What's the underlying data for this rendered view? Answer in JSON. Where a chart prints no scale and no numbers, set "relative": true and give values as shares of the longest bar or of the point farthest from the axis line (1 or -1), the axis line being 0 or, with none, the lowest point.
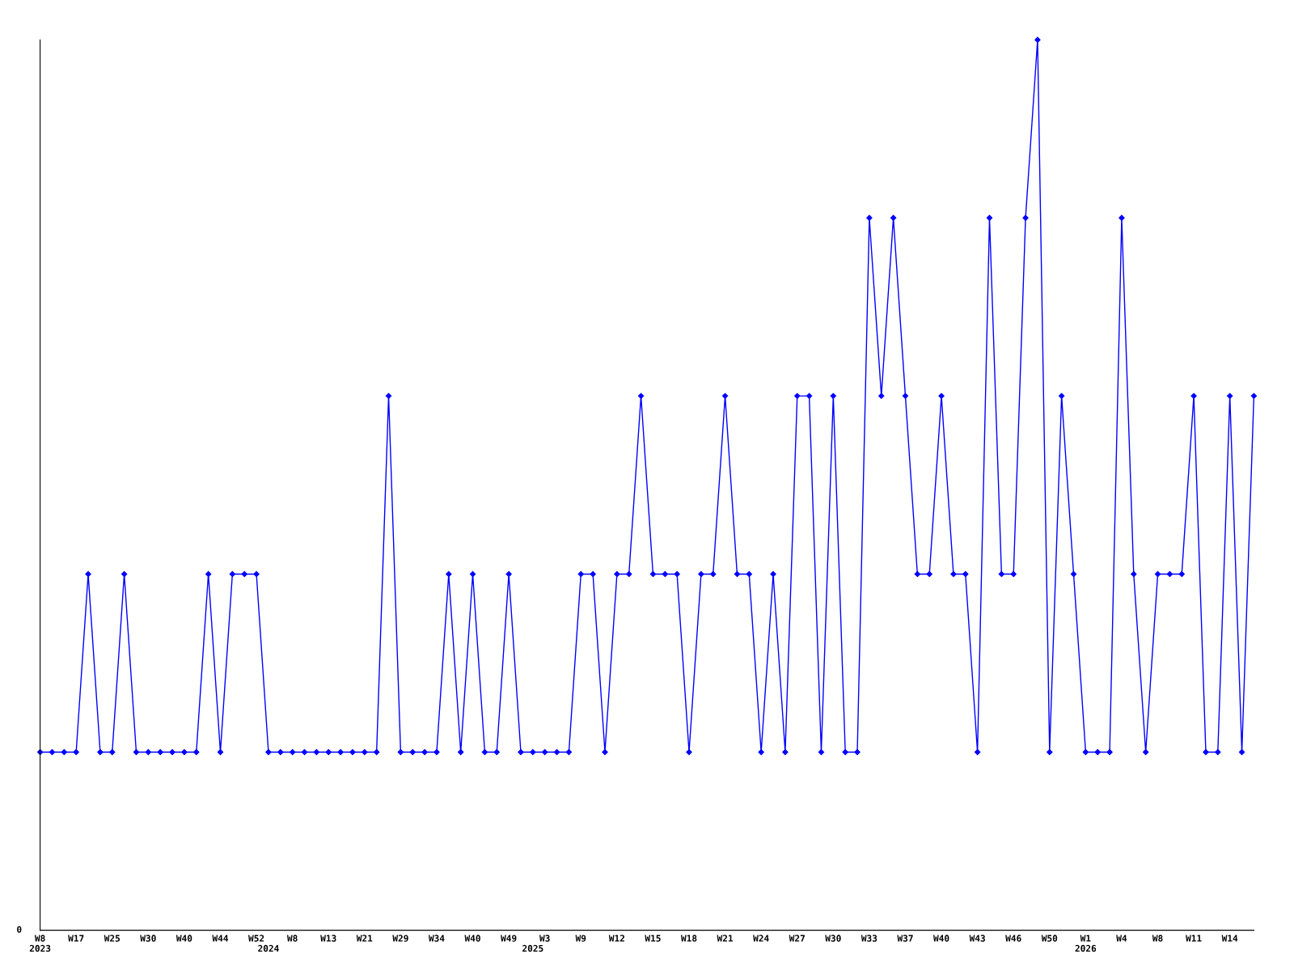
{
  "chart_data": {
    "type": "line",
    "relative": true,
    "color": "#0000ff",
    "marker": "diamond",
    "line_style": "solid",
    "grid": false,
    "legend": false,
    "annotations": [
      "0"
    ],
    "categories": [
      "W8\n2023",
      null,
      null,
      "W17",
      null,
      null,
      "W25",
      null,
      null,
      "W30",
      null,
      null,
      "W40",
      null,
      null,
      "W44",
      null,
      null,
      "W52",
      "\n2024",
      null,
      "W8",
      null,
      null,
      "W13",
      null,
      null,
      "W21",
      null,
      null,
      "W29",
      null,
      null,
      "W34",
      null,
      null,
      "W40",
      null,
      null,
      "W49",
      null,
      "\n2025",
      "W3",
      null,
      null,
      "W9",
      null,
      null,
      "W12",
      null,
      null,
      "W15",
      null,
      null,
      "W18",
      null,
      null,
      "W21",
      null,
      null,
      "W24",
      null,
      null,
      "W27",
      null,
      null,
      "W30",
      null,
      null,
      "W33",
      null,
      null,
      "W37",
      null,
      null,
      "W40",
      null,
      null,
      "W43",
      null,
      null,
      "W46",
      null,
      null,
      "W50",
      null,
      null,
      "W1\n2026",
      null,
      null,
      "W4",
      null,
      null,
      "W8",
      null,
      null,
      "W11",
      null,
      null,
      "W14",
      null,
      null
    ],
    "values": [
      0.2,
      0.2,
      0.2,
      0.2,
      0.4,
      0.2,
      0.2,
      0.4,
      0.2,
      0.2,
      0.2,
      0.2,
      0.2,
      0.2,
      0.4,
      0.2,
      0.4,
      0.4,
      0.4,
      0.2,
      0.2,
      0.2,
      0.2,
      0.2,
      0.2,
      0.2,
      0.2,
      0.2,
      0.2,
      0.6,
      0.2,
      0.2,
      0.2,
      0.2,
      0.4,
      0.2,
      0.4,
      0.2,
      0.2,
      0.4,
      0.2,
      0.2,
      0.2,
      0.2,
      0.2,
      0.4,
      0.4,
      0.2,
      0.4,
      0.4,
      0.6,
      0.4,
      0.4,
      0.4,
      0.2,
      0.4,
      0.4,
      0.6,
      0.4,
      0.4,
      0.2,
      0.4,
      0.2,
      0.6,
      0.6,
      0.2,
      0.6,
      0.2,
      0.2,
      0.8,
      0.6,
      0.8,
      0.6,
      0.4,
      0.4,
      0.6,
      0.4,
      0.4,
      0.2,
      0.8,
      0.4,
      0.4,
      0.8,
      1,
      0.2,
      0.6,
      0.4,
      0.2,
      0.2,
      0.2,
      0.8,
      0.4,
      0.2,
      0.4,
      0.4,
      0.4,
      0.6,
      0.2,
      0.2,
      0.6,
      0.2,
      0.6
    ]
  }
}
